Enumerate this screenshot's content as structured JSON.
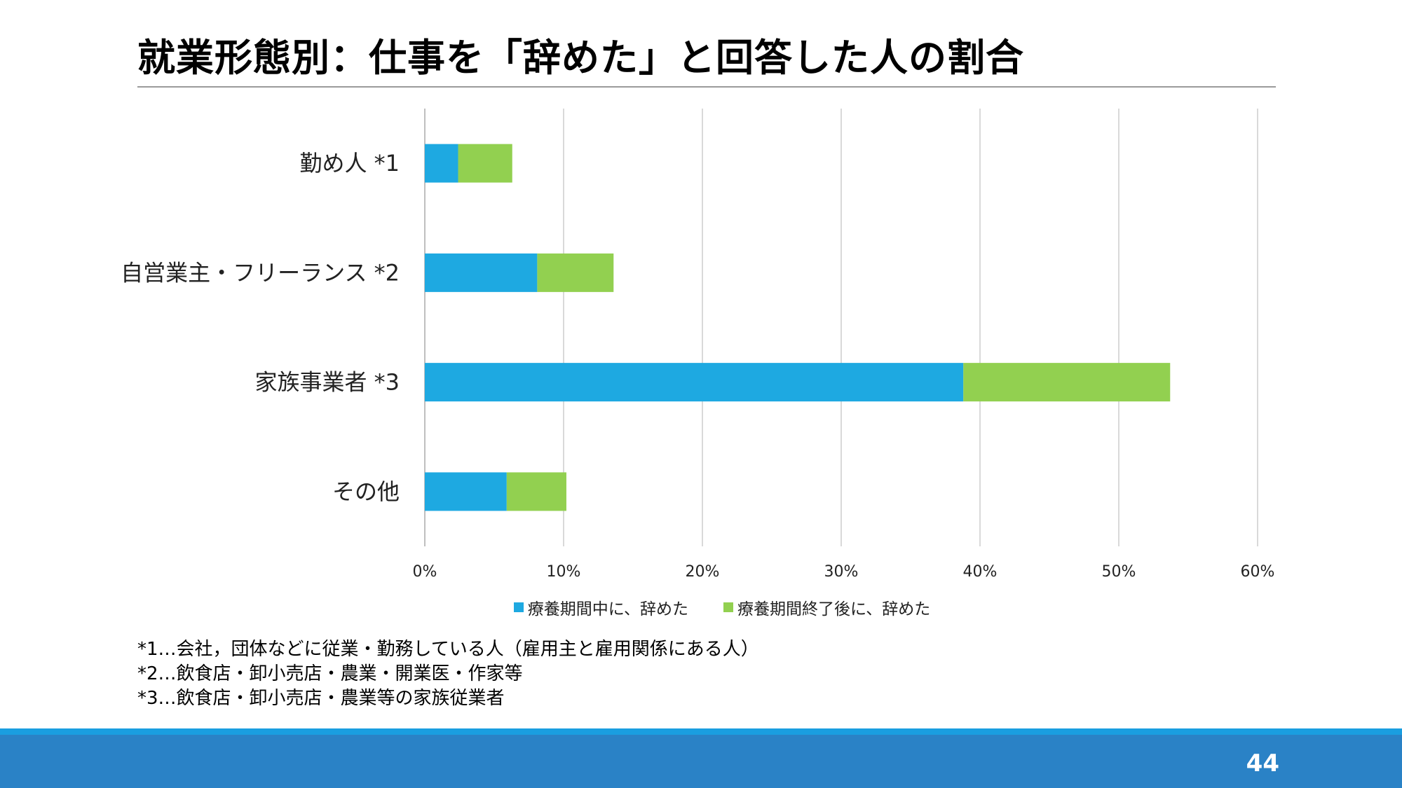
{
  "slide": {
    "title": "就業形態別：仕事を「辞めた」と回答した人の割合",
    "page_number": "44"
  },
  "chart_data": {
    "type": "bar",
    "orientation": "horizontal",
    "stacked": true,
    "categories": [
      "勤め人 *1",
      "自営業主・フリーランス *2",
      "家族事業者  *3",
      "その他"
    ],
    "series": [
      {
        "name": "療養期間中に、辞めた",
        "color": "#1ea9e1",
        "values": [
          2.4,
          8.1,
          38.8,
          5.9
        ]
      },
      {
        "name": "療養期間終了後に、辞めた",
        "color": "#92d050",
        "values": [
          3.9,
          5.5,
          14.9,
          4.3
        ]
      }
    ],
    "xlim": [
      0,
      60
    ],
    "xticks": [
      "0%",
      "10%",
      "20%",
      "30%",
      "40%",
      "50%",
      "60%"
    ],
    "grid": true,
    "legend_position": "bottom"
  },
  "footnotes": [
    "*1…会社，団体などに従業・勤務している人（雇用主と雇用関係にある人）",
    "*2…飲食店・卸小売店・農業・開業医・作家等",
    "*3…飲食店・卸小売店・農業等の家族従業者"
  ]
}
